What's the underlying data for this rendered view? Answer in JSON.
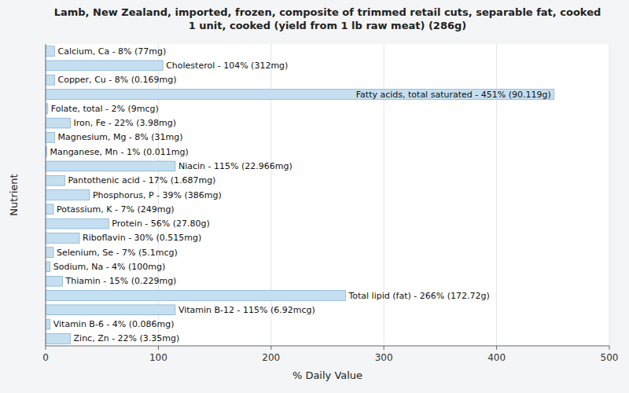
{
  "chart_data": {
    "type": "bar",
    "orientation": "horizontal",
    "title": "Lamb, New Zealand, imported, frozen, composite of trimmed retail cuts, separable fat, cooked\n1 unit, cooked (yield from 1 lb raw meat) (286g)",
    "x_label": "% Daily Value",
    "y_label": "Nutrient",
    "categories": [
      "Calcium, Ca - 8% (77mg)",
      "Cholesterol - 104% (312mg)",
      "Copper, Cu - 8% (0.169mg)",
      "Fatty acids, total saturated - 451% (90.119g)",
      "Folate, total - 2% (9mcg)",
      "Iron, Fe - 22% (3.98mg)",
      "Magnesium, Mg - 8% (31mg)",
      "Manganese, Mn - 1% (0.011mg)",
      "Niacin - 115% (22.966mg)",
      "Pantothenic acid - 17% (1.687mg)",
      "Phosphorus, P - 39% (386mg)",
      "Potassium, K - 7% (249mg)",
      "Protein - 56% (27.80g)",
      "Riboflavin - 30% (0.515mg)",
      "Selenium, Se - 7% (5.1mcg)",
      "Sodium, Na - 4% (100mg)",
      "Thiamin - 15% (0.229mg)",
      "Total lipid (fat) - 266% (172.72g)",
      "Vitamin B-12 - 115% (6.92mcg)",
      "Vitamin B-6 - 4% (0.086mg)",
      "Zinc, Zn - 22% (3.35mg)"
    ],
    "values": [
      8,
      104,
      8,
      451,
      2,
      22,
      8,
      1,
      115,
      17,
      39,
      7,
      56,
      30,
      7,
      4,
      15,
      266,
      115,
      4,
      22
    ],
    "color": "#c5dff0",
    "xlim": [
      0,
      500
    ],
    "xticks": [
      0,
      100,
      200,
      300,
      400,
      500
    ],
    "grid": true,
    "tick_labels": "x"
  }
}
